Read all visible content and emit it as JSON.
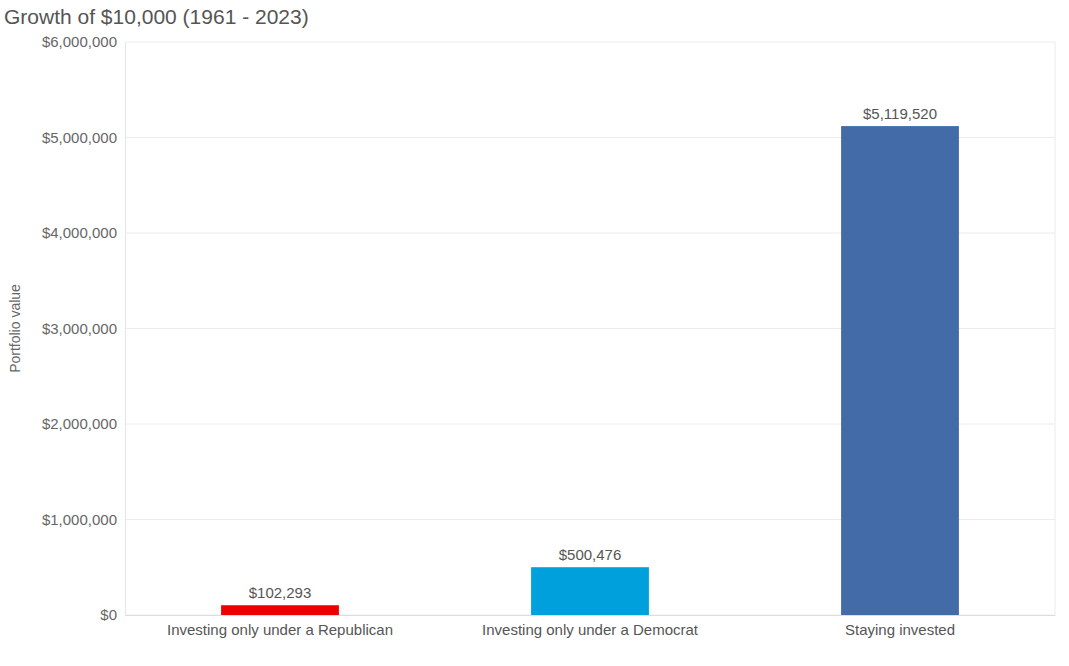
{
  "chart_data": {
    "type": "bar",
    "title": "Growth of $10,000 (1961 - 2023)",
    "y_label": "Portfolio value",
    "categories": [
      "Investing only under a Republican",
      "Investing only under a Democrat",
      "Staying invested"
    ],
    "values": [
      102293,
      500476,
      5119520
    ],
    "value_labels": [
      "$102,293",
      "$500,476",
      "$5,119,520"
    ],
    "colors": [
      "#ee0000",
      "#00a0dc",
      "#426ba8"
    ],
    "ylim": [
      0,
      6000000
    ],
    "yticks": [
      {
        "value": 0,
        "label": "$0"
      },
      {
        "value": 1000000,
        "label": "$1,000,000"
      },
      {
        "value": 2000000,
        "label": "$2,000,000"
      },
      {
        "value": 3000000,
        "label": "$3,000,000"
      },
      {
        "value": 4000000,
        "label": "$4,000,000"
      },
      {
        "value": 5000000,
        "label": "$5,000,000"
      },
      {
        "value": 6000000,
        "label": "$6,000,000"
      }
    ],
    "grid": true,
    "data_labels": true
  }
}
